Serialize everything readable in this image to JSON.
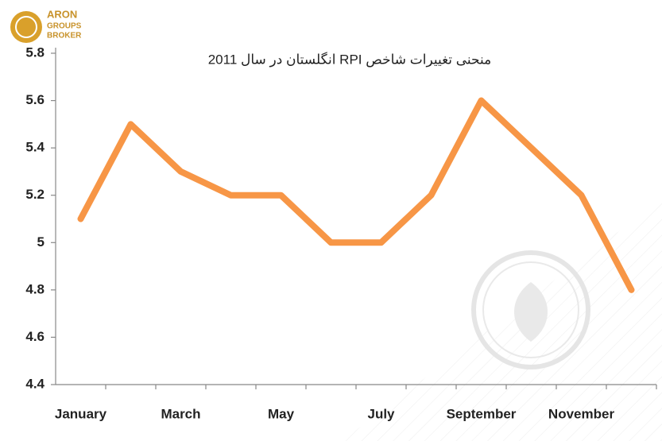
{
  "logo": {
    "lines": [
      "ARON",
      "GROUPS",
      "BROKER"
    ]
  },
  "chart_data": {
    "type": "line",
    "title": "منحنی تغییرات شاخص RPI انگلستان در سال 2011",
    "categories": [
      "January",
      null,
      "March",
      null,
      "May",
      null,
      "July",
      null,
      "September",
      null,
      "November",
      null
    ],
    "values": [
      5.1,
      5.5,
      5.3,
      5.2,
      5.2,
      5.0,
      5.0,
      5.2,
      5.6,
      5.4,
      5.2,
      4.8
    ],
    "color": "#f79646",
    "ylim": [
      4.4,
      5.8
    ],
    "yticks": [
      4.4,
      4.6,
      4.8,
      5,
      5.2,
      5.4,
      5.6,
      5.8
    ],
    "grid": false
  }
}
